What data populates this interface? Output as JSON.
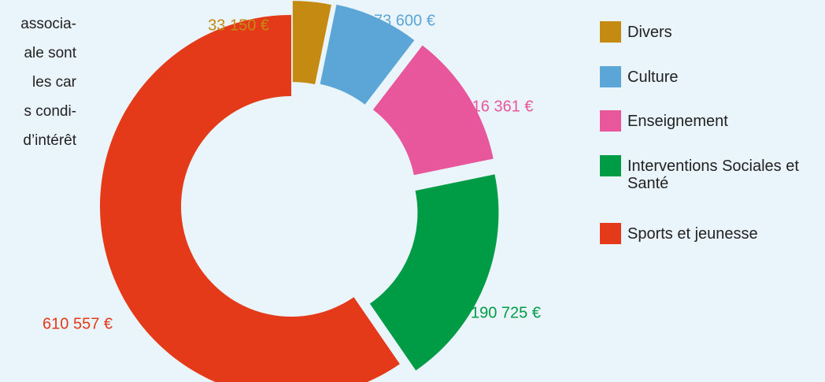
{
  "side_text": [
    "associa-",
    "ale sont",
    "les car",
    "s condi-",
    "d’intérêt"
  ],
  "chart_data": {
    "type": "donut",
    "categories": [
      "Divers",
      "Culture",
      "Enseignement",
      "Interventions Sociales et Santé",
      "Sports et jeunesse"
    ],
    "values": [
      33150,
      73600,
      116361,
      190725,
      610557
    ],
    "value_labels": [
      "33 150 €",
      "73 600 €",
      "116 361 €",
      "190 725 €",
      "610 557 €"
    ],
    "colors": [
      "#c48a12",
      "#5ba6d7",
      "#e8569b",
      "#009b45",
      "#e43a19"
    ],
    "legend": "right"
  }
}
